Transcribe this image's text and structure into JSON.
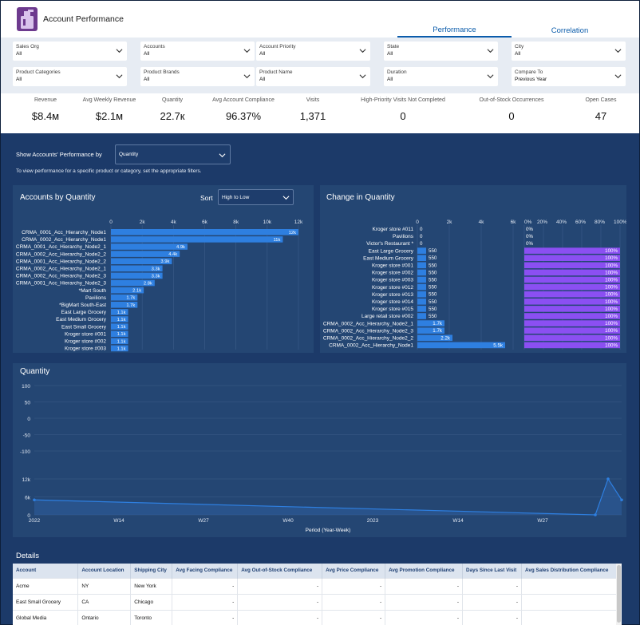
{
  "app": {
    "title": "Account Performance"
  },
  "tabs": [
    {
      "label": "Performance"
    },
    {
      "label": "Correlation"
    }
  ],
  "filters": [
    {
      "label": "Sales Org",
      "value": "All"
    },
    {
      "label": "Accounts",
      "value": "All"
    },
    {
      "label": "Account Priority",
      "value": "All"
    },
    {
      "label": "State",
      "value": "All"
    },
    {
      "label": "City",
      "value": "All"
    },
    {
      "label": "Product Categories",
      "value": "All"
    },
    {
      "label": "Product Brands",
      "value": "All"
    },
    {
      "label": "Product Name",
      "value": "All"
    },
    {
      "label": "Duration",
      "value": "All"
    },
    {
      "label": "Compare To",
      "value": "Previous Year"
    }
  ],
  "kpis": [
    {
      "label": "Revenue",
      "value": "$8.4м"
    },
    {
      "label": "Avg Weekly Revenue",
      "value": "$2.1м"
    },
    {
      "label": "Quantity",
      "value": "22.7к"
    },
    {
      "label": "Avg Account Compliance",
      "value": "96.37%"
    },
    {
      "label": "Visits",
      "value": "1,371"
    },
    {
      "label": "High-Priority Visits Not Completed",
      "value": "0"
    },
    {
      "label": "Out-of-Stock Occurrences",
      "value": "0"
    },
    {
      "label": "Open Cases",
      "value": "47"
    }
  ],
  "showby": {
    "label": "Show Accounts' Performance by",
    "value": "Quantity",
    "hint": "To view performance for a specific product or category, set the appropriate filters."
  },
  "colors": {
    "bar": "#2e7fe0",
    "purple": "#8b4ff2",
    "line": "#2e7fe0"
  },
  "chart_data": [
    {
      "type": "bar",
      "title": "Accounts by Quantity",
      "sort": {
        "label": "Sort",
        "value": "High to Low"
      },
      "x_ticks": [
        "0",
        "2k",
        "4k",
        "6k",
        "8k",
        "10k",
        "12k"
      ],
      "xlim": [
        0,
        12000
      ],
      "categories": [
        "CRMA_0001_Acc_Hierarchy_Node1",
        "CRMA_0002_Acc_Hierarchy_Node1",
        "CRMA_0001_Acc_Hierarchy_Node2_1",
        "CRMA_0002_Acc_Hierarchy_Node2_2",
        "CRMA_0001_Acc_Hierarchy_Node2_2",
        "CRMA_0002_Acc_Hierarchy_Node2_1",
        "CRMA_0002_Acc_Hierarchy_Node2_3",
        "CRMA_0001_Acc_Hierarchy_Node2_3",
        "*Mart South",
        "Pavilions",
        "*BigMart South-East",
        "East Large Grocery",
        "East Medium Grocery",
        "East Small Grocery",
        "Kroger store #001",
        "Kroger store #002",
        "Kroger store #003"
      ],
      "values": [
        12000,
        11000,
        4900,
        4400,
        3900,
        3300,
        3300,
        2800,
        2100,
        1700,
        1700,
        1100,
        1100,
        1100,
        1100,
        1100,
        1100
      ],
      "labels": [
        "12k",
        "11k",
        "4.9k",
        "4.4k",
        "3.9k",
        "3.3k",
        "3.3k",
        "2.8k",
        "2.1k",
        "1.7k",
        "1.7k",
        "1.1k",
        "1.1k",
        "1.1k",
        "1.1k",
        "1.1k",
        "1.1k"
      ]
    },
    {
      "type": "bar",
      "title": "Change in Quantity",
      "x_ticks": [
        "0",
        "2k",
        "4k",
        "6k"
      ],
      "xlim": [
        0,
        6000
      ],
      "pct_ticks": [
        "0%",
        "20%",
        "40%",
        "60%",
        "80%",
        "100%"
      ],
      "categories": [
        "Kroger store #011",
        "Pavilions",
        "Victor's Restaurant *",
        "East Large Grocery",
        "East Medium Grocery",
        "Kroger store #001",
        "Kroger store #002",
        "Kroger store #003",
        "Kroger store #012",
        "Kroger store #013",
        "Kroger store #014",
        "Kroger store #015",
        "Large retail store #002",
        "CRMA_0002_Acc_Hierarchy_Node2_1",
        "CRMA_0002_Acc_Hierarchy_Node2_3",
        "CRMA_0002_Acc_Hierarchy_Node2_2",
        "CRMA_0002_Acc_Hierarchy_Node1"
      ],
      "values": [
        0,
        0,
        0,
        550,
        550,
        550,
        550,
        550,
        550,
        550,
        550,
        550,
        550,
        1700,
        1700,
        2200,
        5500
      ],
      "labels": [
        "0",
        "0",
        "0",
        "550",
        "550",
        "550",
        "550",
        "550",
        "550",
        "550",
        "550",
        "550",
        "550",
        "1.7k",
        "1.7k",
        "2.2k",
        "5.5k"
      ],
      "pct_values": [
        0,
        0,
        0,
        100,
        100,
        100,
        100,
        100,
        100,
        100,
        100,
        100,
        100,
        100,
        100,
        100,
        100
      ],
      "pct_labels": [
        "0%",
        "0%",
        "0%",
        "100%",
        "100%",
        "100%",
        "100%",
        "100%",
        "100%",
        "100%",
        "100%",
        "100%",
        "100%",
        "100%",
        "100%",
        "100%",
        "100%"
      ]
    },
    {
      "type": "area",
      "title": "Quantity",
      "xlabel": "Period (Year-Week)",
      "x_ticks": [
        "2022",
        "W14",
        "W27",
        "W40",
        "2023",
        "W14",
        "W27"
      ],
      "y_ticks_upper": [
        "100",
        "50",
        "0",
        "-50",
        "-100"
      ],
      "y_ticks_lower": [
        "12k",
        "6k",
        "0"
      ],
      "x": [
        "2022",
        "2023-W49",
        "2023-W51",
        "2023-W52"
      ],
      "values": [
        5000,
        0,
        12000,
        5000
      ],
      "ylim": [
        0,
        12000
      ]
    }
  ],
  "details": {
    "title": "Details",
    "columns": [
      "Account",
      "Account Location",
      "Shipping City",
      "Avg Facing Compliance",
      "Avg Out-of-Stock Compliance",
      "Avg Price Compliance",
      "Avg Promotion Compliance",
      "Days Since Last Visit",
      "Avg Sales Distribution Compliance"
    ],
    "rows": [
      [
        "Acme",
        "NY",
        "New York",
        "-",
        "-",
        "-",
        "-",
        "-",
        "-"
      ],
      [
        "East Small Grocery",
        "CA",
        "Chicago",
        "-",
        "-",
        "-",
        "-",
        "-",
        "-"
      ],
      [
        "Global Media",
        "Ontario",
        "Toronto",
        "-",
        "-",
        "-",
        "-",
        "-",
        "-"
      ]
    ]
  }
}
